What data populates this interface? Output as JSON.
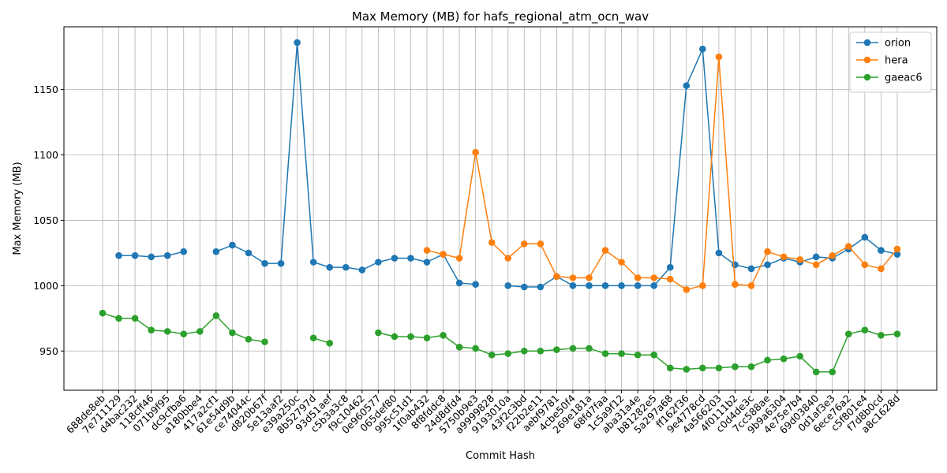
{
  "chart_data": {
    "type": "line",
    "title": "Max Memory (MB) for hafs_regional_atm_ocn_wav",
    "xlabel": "Commit Hash",
    "ylabel": "Max Memory (MB)",
    "ylim": [
      920,
      1198
    ],
    "yticks": [
      950,
      1000,
      1050,
      1100,
      1150
    ],
    "grid": true,
    "legend_position": "top-right",
    "categories": [
      "688de8eb",
      "7e711129",
      "d4bac232",
      "118cff46",
      "071b9f95",
      "dc9cfba6",
      "a180bbe4",
      "417a2cf1",
      "61e54d9b",
      "ce74044c",
      "d820b67f",
      "5e13aaf2",
      "e39a250c",
      "8b52797d",
      "93d51aef",
      "c5b3a3c8",
      "f9c10462",
      "0e960577",
      "065def80",
      "995c51d1",
      "1f0ab432",
      "8f8fddc8",
      "24d8dfd4",
      "5750b9e3",
      "a9999828",
      "9193010a",
      "43f2c3bd",
      "f22b2e11",
      "aebf9781",
      "4cbe50f4",
      "269e181a",
      "68fd7faa",
      "1c5a9f12",
      "aba31a4e",
      "b81282e5",
      "5a297a68",
      "ff162f36",
      "9e4778cd",
      "4a566203",
      "4f0111b2",
      "c0d4de3c",
      "7cc588ae",
      "9b9a6304",
      "4e75e7b4",
      "69d03840",
      "0d1af3e3",
      "6ece76a2",
      "c5f801e4",
      "f7d8b0cd",
      "a8c1628d"
    ],
    "series": [
      {
        "name": "orion",
        "color": "#1f77b4",
        "values": [
          null,
          1023,
          1023,
          1022,
          1023,
          1026,
          null,
          1026,
          1031,
          1025,
          1017,
          1017,
          1186,
          1018,
          1014,
          1014,
          1012,
          1018,
          1021,
          1021,
          1018,
          1024,
          1002,
          1001,
          null,
          1000,
          999,
          999,
          1007,
          1000,
          1000,
          1000,
          1000,
          1000,
          1000,
          1014,
          1153,
          1181,
          1025,
          1016,
          1013,
          1016,
          1021,
          1018,
          1022,
          1021,
          1028,
          1037,
          1027,
          1024
        ]
      },
      {
        "name": "hera",
        "color": "#ff7f0e",
        "values": [
          null,
          null,
          null,
          null,
          null,
          null,
          null,
          null,
          null,
          null,
          null,
          null,
          null,
          null,
          null,
          null,
          null,
          null,
          null,
          null,
          1027,
          1024,
          1021,
          1102,
          1033,
          1021,
          1032,
          1032,
          1007,
          1006,
          1006,
          1027,
          1018,
          1006,
          1006,
          1005,
          997,
          1000,
          1175,
          1001,
          1000,
          1026,
          1022,
          1020,
          1016,
          1023,
          1030,
          1016,
          1013,
          1028
        ]
      },
      {
        "name": "gaeac6",
        "color": "#2ca02c",
        "values": [
          979,
          975,
          975,
          966,
          965,
          963,
          965,
          977,
          964,
          959,
          957,
          null,
          null,
          960,
          956,
          null,
          null,
          964,
          961,
          961,
          960,
          962,
          953,
          952,
          947,
          948,
          950,
          950,
          951,
          952,
          952,
          948,
          948,
          947,
          947,
          937,
          936,
          937,
          937,
          938,
          938,
          943,
          944,
          946,
          934,
          934,
          963,
          966,
          962,
          963
        ]
      }
    ]
  }
}
